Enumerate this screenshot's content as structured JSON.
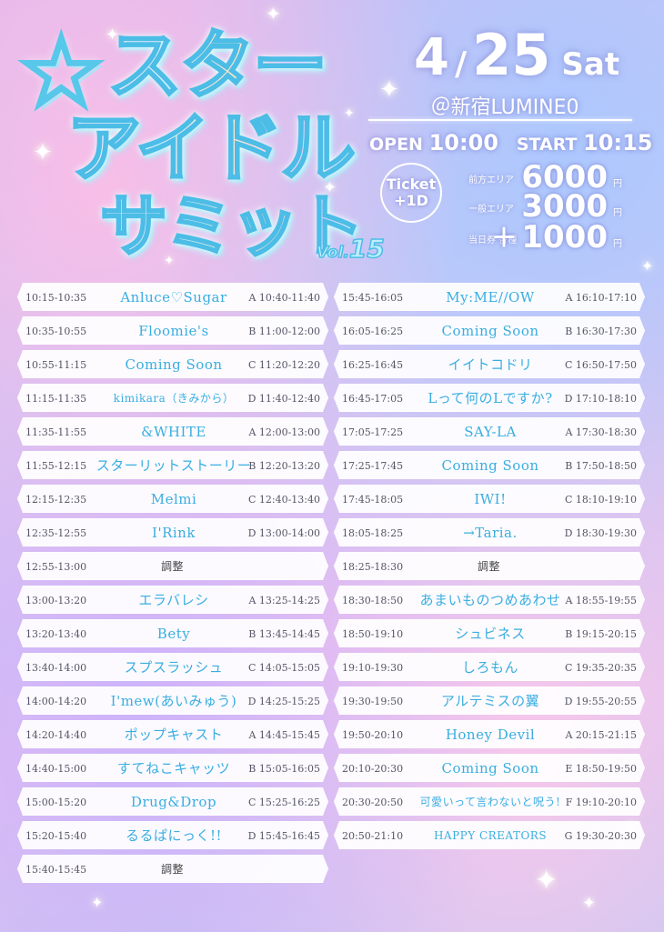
{
  "logo": {
    "line1": "スター",
    "line2": "アイドル",
    "line3": "サミット",
    "vol_prefix": "Vol.",
    "vol_number": "15"
  },
  "event": {
    "month": "4",
    "slash": "/",
    "day": "25",
    "weekday": "Sat",
    "venue": "＠新宿LUMINE0",
    "open_label": "OPEN",
    "open_time": "10:00",
    "start_label": "START",
    "start_time": "10:15"
  },
  "ticket": {
    "badge_line1": "Ticket",
    "badge_line2": "+1D",
    "prices": [
      {
        "label": "前方エリア",
        "plus": "",
        "value": "6000",
        "unit": "円"
      },
      {
        "label": "一般エリア",
        "plus": "",
        "value": "3000",
        "unit": "円"
      },
      {
        "label": "当日券 各種",
        "plus": "＋",
        "value": "1000",
        "unit": "円"
      }
    ]
  },
  "timetable": {
    "left": [
      {
        "time": "10:15-10:35",
        "artist": "Anluce♡Sugar",
        "greeting": "A 10:40-11:40"
      },
      {
        "time": "10:35-10:55",
        "artist": "Floomie's",
        "greeting": "B 11:00-12:00"
      },
      {
        "time": "10:55-11:15",
        "artist": "Coming Soon",
        "greeting": "C 11:20-12:20"
      },
      {
        "time": "11:15-11:35",
        "artist": "kimikara（きみから）",
        "greeting": "D 11:40-12:40"
      },
      {
        "time": "11:35-11:55",
        "artist": "&WHITE",
        "greeting": "A 12:00-13:00"
      },
      {
        "time": "11:55-12:15",
        "artist": "スターリットストーリー",
        "greeting": "B 12:20-13:20"
      },
      {
        "time": "12:15-12:35",
        "artist": "Melmi",
        "greeting": "C 12:40-13:40"
      },
      {
        "time": "12:35-12:55",
        "artist": "I'Rink",
        "greeting": "D 13:00-14:00"
      },
      {
        "time": "12:55-13:00",
        "artist": "調整",
        "greeting": ""
      },
      {
        "time": "13:00-13:20",
        "artist": "エラバレシ",
        "greeting": "A 13:25-14:25"
      },
      {
        "time": "13:20-13:40",
        "artist": "Bety",
        "greeting": "B 13:45-14:45"
      },
      {
        "time": "13:40-14:00",
        "artist": "スプスラッシュ",
        "greeting": "C 14:05-15:05"
      },
      {
        "time": "14:00-14:20",
        "artist": "I'mew(あいみゅう)",
        "greeting": "D 14:25-15:25"
      },
      {
        "time": "14:20-14:40",
        "artist": "ポップキャスト",
        "greeting": "A 14:45-15:45"
      },
      {
        "time": "14:40-15:00",
        "artist": "すてねこキャッツ",
        "greeting": "B 15:05-16:05"
      },
      {
        "time": "15:00-15:20",
        "artist": "Drug&Drop",
        "greeting": "C 15:25-16:25"
      },
      {
        "time": "15:20-15:40",
        "artist": "るるぱにっく!!",
        "greeting": "D 15:45-16:45"
      },
      {
        "time": "15:40-15:45",
        "artist": "調整",
        "greeting": ""
      }
    ],
    "right": [
      {
        "time": "15:45-16:05",
        "artist": "My:ME//OW",
        "greeting": "A 16:10-17:10"
      },
      {
        "time": "16:05-16:25",
        "artist": "Coming Soon",
        "greeting": "B 16:30-17:30"
      },
      {
        "time": "16:25-16:45",
        "artist": "イイトコドリ",
        "greeting": "C 16:50-17:50"
      },
      {
        "time": "16:45-17:05",
        "artist": "Lって何のLですか?",
        "greeting": "D 17:10-18:10"
      },
      {
        "time": "17:05-17:25",
        "artist": "SAY-LA",
        "greeting": "A 17:30-18:30"
      },
      {
        "time": "17:25-17:45",
        "artist": "Coming Soon",
        "greeting": "B 17:50-18:50"
      },
      {
        "time": "17:45-18:05",
        "artist": "IWI!",
        "greeting": "C 18:10-19:10"
      },
      {
        "time": "18:05-18:25",
        "artist": "→Taria.",
        "greeting": "D 18:30-19:30"
      },
      {
        "time": "18:25-18:30",
        "artist": "調整",
        "greeting": ""
      },
      {
        "time": "18:30-18:50",
        "artist": "あまいものつめあわせ",
        "greeting": "A 18:55-19:55"
      },
      {
        "time": "18:50-19:10",
        "artist": "シュビネス",
        "greeting": "B 19:15-20:15"
      },
      {
        "time": "19:10-19:30",
        "artist": "しろもん",
        "greeting": "C 19:35-20:35"
      },
      {
        "time": "19:30-19:50",
        "artist": "アルテミスの翼",
        "greeting": "D 19:55-20:55"
      },
      {
        "time": "19:50-20:10",
        "artist": "Honey Devil",
        "greeting": "A 20:15-21:15"
      },
      {
        "time": "20:10-20:30",
        "artist": "Coming Soon",
        "greeting": "E 18:50-19:50"
      },
      {
        "time": "20:30-20:50",
        "artist": "可愛いって言わないと呪う!",
        "greeting": "F 19:10-20:10"
      },
      {
        "time": "20:50-21:10",
        "artist": "HAPPY CREATORS",
        "greeting": "G 19:30-20:30"
      }
    ]
  }
}
